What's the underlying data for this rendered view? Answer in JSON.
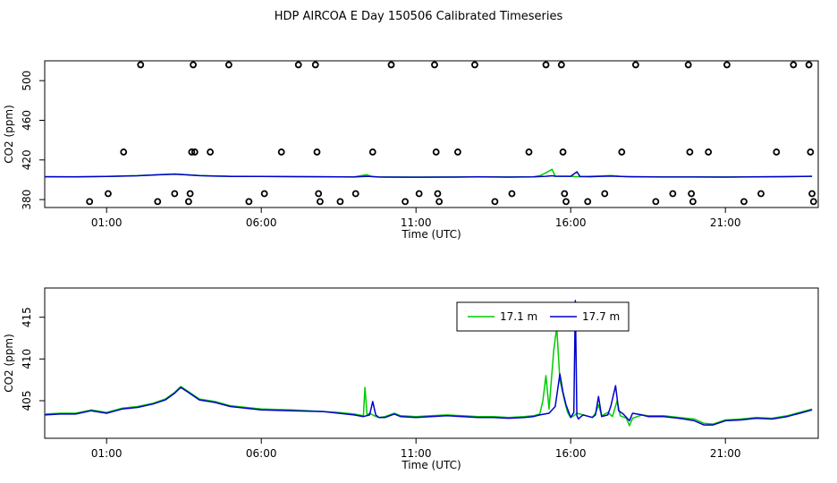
{
  "title": "HDP AIRCOA E  Day 150506  Calibrated Timeseries",
  "x_axis_label": "Time (UTC)",
  "y_axis_label": "CO2 (ppm)",
  "legend": {
    "entries": [
      "17.1 m",
      "17.7 m"
    ],
    "placement": "top-right"
  },
  "chart_data": [
    {
      "type": "scatter",
      "title": "",
      "xlabel": "Time (UTC)",
      "ylabel": "CO2 (ppm)",
      "xlim": [
        -1.0,
        24.0
      ],
      "ylim": [
        372,
        520
      ],
      "x_ticks": [
        {
          "value": 1,
          "label": "01:00"
        },
        {
          "value": 6,
          "label": "06:00"
        },
        {
          "value": 11,
          "label": "11:00"
        },
        {
          "value": 16,
          "label": "16:00"
        },
        {
          "value": 21,
          "label": "21:00"
        }
      ],
      "y_ticks": [
        {
          "value": 380,
          "label": "380"
        },
        {
          "value": 420,
          "label": "420"
        },
        {
          "value": 460,
          "label": "460"
        },
        {
          "value": 500,
          "label": "500"
        }
      ],
      "calibration_points": {
        "name": "calibration",
        "color": "#000000",
        "x": [
          0.45,
          1.05,
          1.55,
          2.1,
          2.65,
          3.2,
          3.65,
          3.7,
          3.75,
          3.8,
          3.85,
          4.35,
          4.95,
          5.6,
          6.1,
          6.65,
          7.2,
          7.75,
          7.8,
          7.85,
          7.9,
          8.55,
          9.05,
          9.6,
          10.2,
          10.65,
          11.1,
          11.6,
          11.65,
          11.7,
          11.75,
          12.35,
          12.9,
          13.55,
          14.1,
          14.65,
          15.2,
          15.7,
          15.75,
          15.8,
          15.85,
          16.55,
          17.1,
          17.65,
          18.1,
          18.75,
          19.3,
          19.8,
          19.85,
          19.9,
          19.95,
          20.45,
          21.05,
          21.6,
          22.15,
          22.65,
          23.2,
          23.7,
          23.75,
          23.8,
          23.85
        ],
        "y": [
          378,
          386,
          428,
          516,
          378,
          386,
          378,
          386,
          428,
          516,
          428,
          428,
          516,
          378,
          386,
          428,
          516,
          516,
          428,
          386,
          378,
          378,
          386,
          428,
          516,
          378,
          386,
          516,
          428,
          386,
          378,
          428,
          516,
          378,
          386,
          428,
          516,
          516,
          428,
          386,
          378,
          378,
          386,
          428,
          516,
          378,
          386,
          516,
          428,
          386,
          378,
          428,
          516,
          378,
          386,
          428,
          516,
          516,
          428,
          386,
          378
        ]
      },
      "series": [
        {
          "name": "17.1 m",
          "color": "#00cc00",
          "x": [
            -1.0,
            0.0,
            1.0,
            2.0,
            2.7,
            3.2,
            3.6,
            4.0,
            4.5,
            5.0,
            6.0,
            7.0,
            8.0,
            9.0,
            9.4,
            9.6,
            9.8,
            10.0,
            11.0,
            12.0,
            13.0,
            14.0,
            14.8,
            15.0,
            15.2,
            15.4,
            15.5,
            15.8,
            16.0,
            16.3,
            16.6,
            17.0,
            17.3,
            17.6,
            17.8,
            18.0,
            18.5,
            19.0,
            20.0,
            21.0,
            22.0,
            23.0,
            23.8
          ],
          "y": [
            403.1,
            403.0,
            403.4,
            404.1,
            405.2,
            405.8,
            405.0,
            404.2,
            403.8,
            403.5,
            403.4,
            403.2,
            403.0,
            402.9,
            405.0,
            403.0,
            402.8,
            402.8,
            402.7,
            402.8,
            403.0,
            402.8,
            403.0,
            404.0,
            407.0,
            410.5,
            403.5,
            403.5,
            403.4,
            403.0,
            403.5,
            403.8,
            404.2,
            403.5,
            403.2,
            403.1,
            403.0,
            402.9,
            402.9,
            402.8,
            403.0,
            403.2,
            403.5
          ]
        },
        {
          "name": "17.7 m",
          "color": "#0000cc",
          "x": [
            -1.0,
            0.0,
            1.0,
            2.0,
            2.7,
            3.2,
            3.6,
            4.0,
            4.5,
            5.0,
            6.0,
            7.0,
            8.0,
            9.0,
            9.4,
            9.6,
            9.8,
            10.0,
            11.0,
            12.0,
            13.0,
            14.0,
            14.8,
            15.0,
            15.2,
            15.4,
            15.5,
            15.8,
            16.0,
            16.2,
            16.3,
            16.6,
            17.0,
            17.3,
            17.6,
            17.8,
            18.0,
            18.5,
            19.0,
            20.0,
            21.0,
            22.0,
            23.0,
            23.8
          ],
          "y": [
            403.0,
            402.9,
            403.3,
            404.0,
            405.0,
            405.6,
            404.9,
            404.1,
            403.7,
            403.4,
            403.3,
            403.1,
            403.0,
            402.8,
            403.5,
            403.2,
            402.8,
            402.7,
            402.6,
            402.7,
            402.9,
            402.7,
            402.9,
            403.2,
            403.5,
            404.0,
            403.6,
            403.5,
            403.5,
            408.0,
            403.4,
            403.0,
            403.5,
            403.7,
            403.3,
            403.1,
            403.0,
            402.9,
            402.8,
            402.8,
            402.7,
            402.9,
            403.1,
            403.5
          ]
        }
      ]
    },
    {
      "type": "line",
      "title": "",
      "xlabel": "Time (UTC)",
      "ylabel": "CO2 (ppm)",
      "xlim": [
        -1.0,
        24.0
      ],
      "ylim": [
        400.5,
        418.5
      ],
      "x_ticks": [
        {
          "value": 1,
          "label": "01:00"
        },
        {
          "value": 6,
          "label": "06:00"
        },
        {
          "value": 11,
          "label": "11:00"
        },
        {
          "value": 16,
          "label": "16:00"
        },
        {
          "value": 21,
          "label": "21:00"
        }
      ],
      "y_ticks": [
        {
          "value": 405,
          "label": "405"
        },
        {
          "value": 410,
          "label": "410"
        },
        {
          "value": 415,
          "label": "415"
        }
      ],
      "series": [
        {
          "name": "17.1 m",
          "color": "#00cc00",
          "x": [
            -1.0,
            -0.5,
            0.0,
            0.5,
            1.0,
            1.5,
            2.0,
            2.5,
            2.9,
            3.2,
            3.4,
            3.6,
            4.0,
            4.5,
            5.0,
            6.0,
            7.0,
            8.0,
            8.5,
            9.0,
            9.3,
            9.35,
            9.42,
            9.5,
            9.7,
            9.8,
            10.0,
            10.3,
            10.5,
            11.0,
            11.5,
            12.0,
            12.5,
            13.0,
            13.5,
            14.0,
            14.5,
            14.8,
            15.0,
            15.1,
            15.2,
            15.3,
            15.45,
            15.55,
            15.65,
            15.8,
            15.9,
            16.0,
            16.1,
            16.2,
            16.3,
            16.5,
            16.7,
            16.8,
            16.9,
            17.0,
            17.2,
            17.35,
            17.5,
            17.6,
            17.8,
            17.9,
            18.0,
            18.3,
            18.5,
            19.0,
            19.5,
            20.0,
            20.3,
            20.6,
            21.0,
            21.5,
            22.0,
            22.5,
            23.0,
            23.5,
            23.8
          ],
          "y": [
            403.4,
            403.5,
            403.5,
            403.9,
            403.6,
            404.1,
            404.3,
            404.7,
            405.2,
            406.0,
            406.7,
            406.2,
            405.2,
            404.9,
            404.4,
            404.0,
            403.9,
            403.7,
            403.6,
            403.4,
            403.2,
            406.6,
            403.3,
            403.5,
            403.1,
            403.0,
            403.1,
            403.5,
            403.2,
            403.1,
            403.2,
            403.3,
            403.2,
            403.1,
            403.1,
            403.0,
            403.1,
            403.2,
            403.4,
            405.0,
            408.0,
            404.0,
            411.0,
            413.8,
            407.5,
            405.0,
            403.6,
            403.0,
            403.2,
            403.5,
            403.4,
            403.2,
            403.0,
            403.5,
            404.5,
            403.2,
            403.6,
            403.1,
            405.0,
            403.2,
            402.9,
            402.0,
            402.9,
            403.3,
            403.2,
            403.2,
            403.0,
            402.8,
            402.3,
            402.2,
            402.7,
            402.8,
            403.0,
            402.9,
            403.2,
            403.7,
            404.0
          ]
        },
        {
          "name": "17.7 m",
          "color": "#0000cc",
          "x": [
            -1.0,
            -0.5,
            0.0,
            0.5,
            1.0,
            1.5,
            2.0,
            2.5,
            2.9,
            3.2,
            3.4,
            3.6,
            4.0,
            4.5,
            5.0,
            6.0,
            7.0,
            8.0,
            8.5,
            9.0,
            9.3,
            9.5,
            9.6,
            9.7,
            9.8,
            10.0,
            10.3,
            10.5,
            11.0,
            11.5,
            12.0,
            12.5,
            13.0,
            13.5,
            14.0,
            14.5,
            14.8,
            15.0,
            15.3,
            15.5,
            15.65,
            15.75,
            15.85,
            16.0,
            16.1,
            16.15,
            16.2,
            16.25,
            16.3,
            16.4,
            16.5,
            16.7,
            16.8,
            16.9,
            17.0,
            17.2,
            17.3,
            17.45,
            17.55,
            17.7,
            17.9,
            18.0,
            18.3,
            18.5,
            19.0,
            19.5,
            20.0,
            20.3,
            20.6,
            21.0,
            21.5,
            22.0,
            22.5,
            23.0,
            23.5,
            23.8
          ],
          "y": [
            403.3,
            403.4,
            403.4,
            403.8,
            403.5,
            404.0,
            404.2,
            404.6,
            405.1,
            405.9,
            406.6,
            406.1,
            405.1,
            404.8,
            404.3,
            403.9,
            403.8,
            403.7,
            403.5,
            403.3,
            403.1,
            403.3,
            404.9,
            403.3,
            403.0,
            403.0,
            403.4,
            403.1,
            403.0,
            403.1,
            403.2,
            403.1,
            403.0,
            403.0,
            402.9,
            403.0,
            403.1,
            403.3,
            403.5,
            404.3,
            408.2,
            406.0,
            404.5,
            403.0,
            403.6,
            417.0,
            403.2,
            402.8,
            403.0,
            403.3,
            403.2,
            403.0,
            403.3,
            405.5,
            403.1,
            403.3,
            404.4,
            406.8,
            403.8,
            403.4,
            402.6,
            403.5,
            403.3,
            403.1,
            403.1,
            402.9,
            402.6,
            402.1,
            402.1,
            402.6,
            402.7,
            402.9,
            402.8,
            403.1,
            403.6,
            403.9
          ]
        }
      ]
    }
  ]
}
